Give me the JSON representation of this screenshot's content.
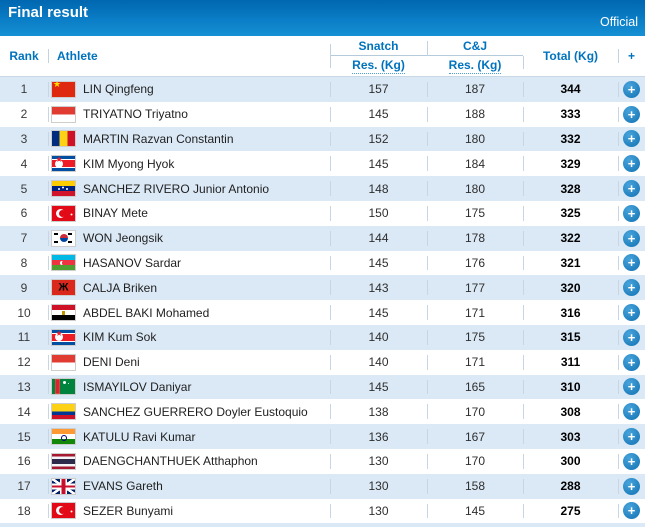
{
  "title_bar": {
    "title": "Final result",
    "status": "Official"
  },
  "table": {
    "columns": {
      "rank": "Rank",
      "athlete": "Athlete",
      "snatch_group": "Snatch",
      "snatch_sub": "Res. (Kg)",
      "cj_group": "C&J",
      "cj_sub": "Res. (Kg)",
      "total": "Total (Kg)",
      "expand": "+"
    },
    "rows": [
      {
        "rank": "1",
        "flag": "chn",
        "name": "LIN Qingfeng",
        "snatch": "157",
        "cj": "187",
        "total": "344"
      },
      {
        "rank": "2",
        "flag": "ina",
        "name": "TRIYATNO Triyatno",
        "snatch": "145",
        "cj": "188",
        "total": "333"
      },
      {
        "rank": "3",
        "flag": "rou",
        "name": "MARTIN Razvan Constantin",
        "snatch": "152",
        "cj": "180",
        "total": "332"
      },
      {
        "rank": "4",
        "flag": "prk",
        "name": "KIM Myong Hyok",
        "snatch": "145",
        "cj": "184",
        "total": "329"
      },
      {
        "rank": "5",
        "flag": "ven",
        "name": "SANCHEZ RIVERO Junior Antonio",
        "snatch": "148",
        "cj": "180",
        "total": "328"
      },
      {
        "rank": "6",
        "flag": "tur",
        "name": "BINAY Mete",
        "snatch": "150",
        "cj": "175",
        "total": "325"
      },
      {
        "rank": "7",
        "flag": "kor",
        "name": "WON Jeongsik",
        "snatch": "144",
        "cj": "178",
        "total": "322"
      },
      {
        "rank": "8",
        "flag": "aze",
        "name": "HASANOV Sardar",
        "snatch": "145",
        "cj": "176",
        "total": "321"
      },
      {
        "rank": "9",
        "flag": "alb",
        "name": "CALJA Briken",
        "snatch": "143",
        "cj": "177",
        "total": "320"
      },
      {
        "rank": "10",
        "flag": "egy",
        "name": "ABDEL BAKI Mohamed",
        "snatch": "145",
        "cj": "171",
        "total": "316"
      },
      {
        "rank": "11",
        "flag": "prk",
        "name": "KIM Kum Sok",
        "snatch": "140",
        "cj": "175",
        "total": "315"
      },
      {
        "rank": "12",
        "flag": "ina",
        "name": "DENI Deni",
        "snatch": "140",
        "cj": "171",
        "total": "311"
      },
      {
        "rank": "13",
        "flag": "tkm",
        "name": "ISMAYILOV Daniyar",
        "snatch": "145",
        "cj": "165",
        "total": "310"
      },
      {
        "rank": "14",
        "flag": "col",
        "name": "SANCHEZ GUERRERO Doyler Eustoquio",
        "snatch": "138",
        "cj": "170",
        "total": "308"
      },
      {
        "rank": "15",
        "flag": "ind",
        "name": "KATULU Ravi Kumar",
        "snatch": "136",
        "cj": "167",
        "total": "303"
      },
      {
        "rank": "16",
        "flag": "tha",
        "name": "DAENGCHANTHUEK Atthaphon",
        "snatch": "130",
        "cj": "170",
        "total": "300"
      },
      {
        "rank": "17",
        "flag": "gbr",
        "name": "EVANS Gareth",
        "snatch": "130",
        "cj": "158",
        "total": "288"
      },
      {
        "rank": "18",
        "flag": "tur",
        "name": "SEZER Bunyami",
        "snatch": "130",
        "cj": "145",
        "total": "275"
      }
    ]
  },
  "icons": {
    "plus": "+"
  },
  "colors": {
    "accent": "#0072bc",
    "title_bar_top": "#0066b0",
    "title_bar_bottom": "#1690d4",
    "header_text": "#0073be",
    "row_alt": "#dbe9f6",
    "plus_button": "#1379bd"
  }
}
